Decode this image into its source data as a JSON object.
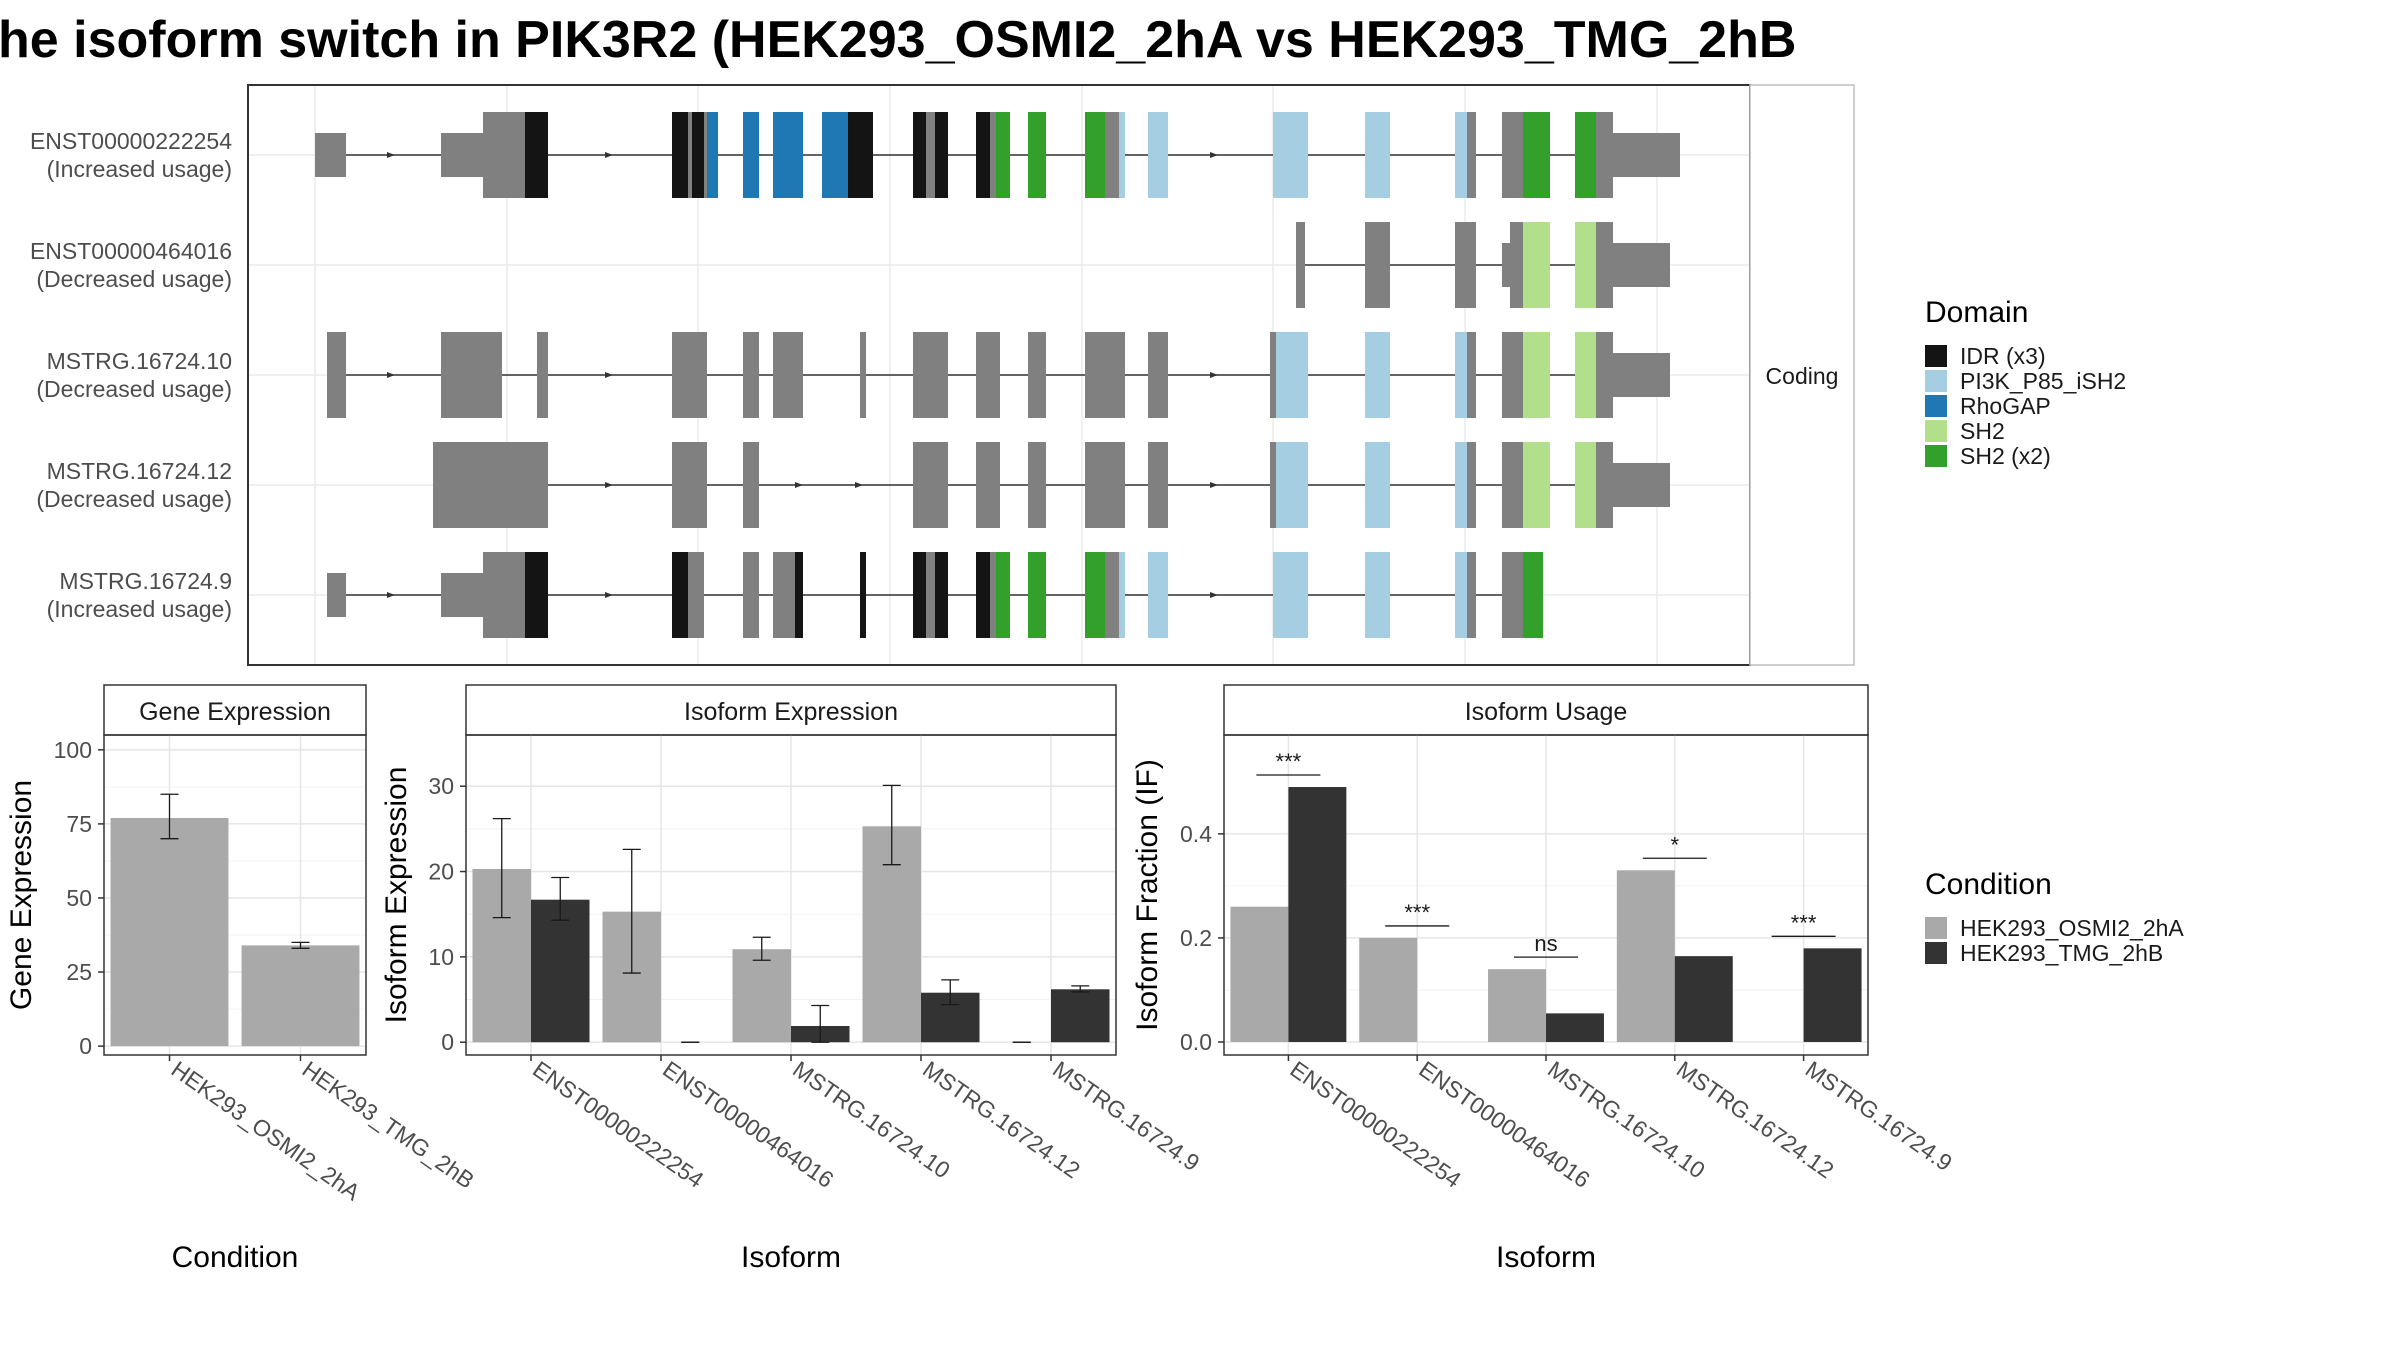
{
  "title": "he isoform switch in PIK3R2 (HEK293_OSMI2_2hA vs HEK293_TMG_2hB",
  "colors": {
    "idr": "#141414",
    "pi3k": "#a6cee3",
    "rhogap": "#1f78b4",
    "sh2_light": "#b2df8a",
    "sh2_dark": "#33a02c",
    "exon": "#808080",
    "cond_a": "#a9a9a9",
    "cond_b": "#333333"
  },
  "structure": {
    "strip_label": "Coding",
    "transcripts": [
      {
        "name": "ENST00000222254",
        "usage": "(Increased usage)"
      },
      {
        "name": "ENST00000464016",
        "usage": "(Decreased usage)"
      },
      {
        "name": "MSTRG.16724.10",
        "usage": "(Decreased usage)"
      },
      {
        "name": "MSTRG.16724.12",
        "usage": "(Decreased usage)"
      },
      {
        "name": "MSTRG.16724.9",
        "usage": "(Increased usage)"
      }
    ]
  },
  "domain_legend": {
    "title": "Domain",
    "items": [
      {
        "label": "IDR (x3)",
        "color": "#141414"
      },
      {
        "label": "PI3K_P85_iSH2",
        "color": "#a6cee3"
      },
      {
        "label": "RhoGAP",
        "color": "#1f78b4"
      },
      {
        "label": "SH2",
        "color": "#b2df8a"
      },
      {
        "label": "SH2 (x2)",
        "color": "#33a02c"
      }
    ]
  },
  "condition_legend": {
    "title": "Condition",
    "items": [
      {
        "label": "HEK293_OSMI2_2hA",
        "color": "#a9a9a9"
      },
      {
        "label": "HEK293_TMG_2hB",
        "color": "#333333"
      }
    ]
  },
  "chart_data": [
    {
      "type": "bar",
      "title": "Gene Expression",
      "xlabel": "Condition",
      "ylabel": "Gene Expression",
      "categories": [
        "HEK293_OSMI2_2hA",
        "HEK293_TMG_2hB"
      ],
      "values": [
        77,
        34
      ],
      "errors": [
        [
          70,
          85
        ],
        [
          33,
          35
        ]
      ],
      "ylim": [
        -3,
        105
      ],
      "yticks": [
        0,
        25,
        50,
        75,
        100
      ],
      "grid": true
    },
    {
      "type": "bar",
      "title": "Isoform Expression",
      "xlabel": "Isoform",
      "ylabel": "Isoform Expression",
      "categories": [
        "ENST00000222254",
        "ENST00000464016",
        "MSTRG.16724.10",
        "MSTRG.16724.12",
        "MSTRG.16724.9"
      ],
      "series": [
        {
          "name": "HEK293_OSMI2_2hA",
          "values": [
            20.3,
            15.3,
            10.9,
            25.3,
            0
          ],
          "errors": [
            [
              14.6,
              26.2
            ],
            [
              8.1,
              22.6
            ],
            [
              9.6,
              12.3
            ],
            [
              20.8,
              30.1
            ],
            [
              0,
              0
            ]
          ]
        },
        {
          "name": "HEK293_TMG_2hB",
          "values": [
            16.7,
            0,
            1.9,
            5.8,
            6.2
          ],
          "errors": [
            [
              14.3,
              19.3
            ],
            [
              0,
              0
            ],
            [
              0,
              4.3
            ],
            [
              4.4,
              7.3
            ],
            [
              5.9,
              6.6
            ]
          ]
        }
      ],
      "ylim": [
        -1.5,
        36
      ],
      "yticks": [
        0,
        10,
        20,
        30
      ],
      "grid": true
    },
    {
      "type": "bar",
      "title": "Isoform Usage",
      "xlabel": "Isoform",
      "ylabel": "Isoform Fraction (IF)",
      "categories": [
        "ENST00000222254",
        "ENST00000464016",
        "MSTRG.16724.10",
        "MSTRG.16724.12",
        "MSTRG.16724.9"
      ],
      "series": [
        {
          "name": "HEK293_OSMI2_2hA",
          "values": [
            0.26,
            0.2,
            0.14,
            0.33,
            0
          ]
        },
        {
          "name": "HEK293_TMG_2hB",
          "values": [
            0.49,
            0,
            0.055,
            0.165,
            0.18
          ]
        }
      ],
      "significance": [
        "***",
        "***",
        "ns",
        "*",
        "***"
      ],
      "ylim": [
        -0.025,
        0.59
      ],
      "yticks": [
        0.0,
        0.2,
        0.4
      ],
      "ytick_labels": [
        "0.0",
        "0.2",
        "0.4"
      ],
      "grid": true
    }
  ]
}
